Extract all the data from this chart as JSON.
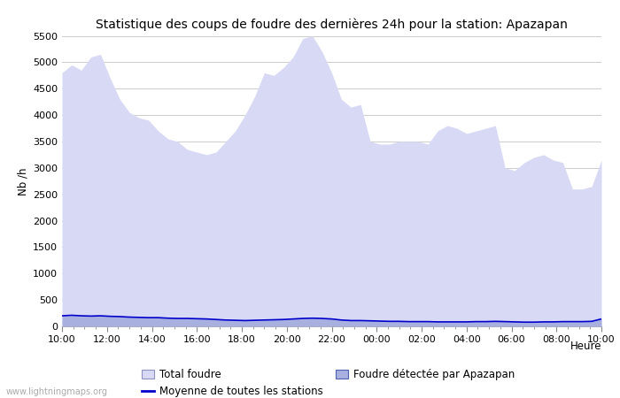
{
  "title": "Statistique des coups de foudre des dernières 24h pour la station: Apazapan",
  "ylabel": "Nb /h",
  "xlabel": "Heure",
  "watermark": "www.lightningmaps.org",
  "x_ticks_labels": [
    "10:00",
    "12:00",
    "14:00",
    "16:00",
    "18:00",
    "20:00",
    "22:00",
    "00:00",
    "02:00",
    "04:00",
    "06:00",
    "08:00",
    "10:00"
  ],
  "ylim": [
    0,
    5500
  ],
  "yticks": [
    0,
    500,
    1000,
    1500,
    2000,
    2500,
    3000,
    3500,
    4000,
    4500,
    5000,
    5500
  ],
  "bg_color": "#ffffff",
  "plot_bg_color": "#ffffff",
  "grid_color": "#cccccc",
  "total_foudre_color": "#d8daf5",
  "total_foudre_edge": "#c0c4ec",
  "foudre_apazapan_color": "#a8b0e0",
  "foudre_apazapan_edge": "#6878cc",
  "moyenne_color": "#0000cc",
  "title_fontsize": 10,
  "label_fontsize": 8.5,
  "tick_fontsize": 8,
  "legend_fontsize": 8.5,
  "total_foudre_y": [
    4800,
    4950,
    4850,
    5100,
    5150,
    4700,
    4300,
    4050,
    3950,
    3900,
    3700,
    3550,
    3500,
    3350,
    3300,
    3250,
    3300,
    3500,
    3700,
    4000,
    4350,
    4800,
    4750,
    4900,
    5100,
    5450,
    5500,
    5200,
    4800,
    4300,
    4150,
    4200,
    3500,
    3450,
    3450,
    3500,
    3500,
    3500,
    3450,
    3700,
    3800,
    3750,
    3650,
    3700,
    3750,
    3800,
    3000,
    2950,
    3100,
    3200,
    3250,
    3150,
    3100,
    2600,
    2600,
    2650,
    3150
  ],
  "foudre_apazapan_y": [
    200,
    210,
    200,
    195,
    200,
    190,
    185,
    175,
    170,
    165,
    165,
    155,
    150,
    150,
    145,
    140,
    130,
    120,
    115,
    110,
    115,
    120,
    125,
    130,
    140,
    150,
    155,
    150,
    140,
    120,
    110,
    110,
    105,
    100,
    95,
    95,
    90,
    90,
    90,
    85,
    85,
    85,
    85,
    90,
    90,
    95,
    90,
    85,
    80,
    80,
    85,
    85,
    90,
    90,
    90,
    95,
    140
  ],
  "moyenne_y": [
    200,
    210,
    200,
    195,
    200,
    190,
    185,
    175,
    170,
    165,
    165,
    155,
    150,
    150,
    145,
    140,
    130,
    120,
    115,
    110,
    115,
    120,
    125,
    130,
    140,
    150,
    155,
    150,
    140,
    120,
    110,
    110,
    105,
    100,
    95,
    95,
    90,
    90,
    90,
    85,
    85,
    85,
    85,
    90,
    90,
    95,
    90,
    85,
    80,
    80,
    85,
    85,
    90,
    90,
    90,
    95,
    140
  ],
  "legend_labels": [
    "Total foudre",
    "Moyenne de toutes les stations",
    "Foudre détectée par Apazapan"
  ]
}
